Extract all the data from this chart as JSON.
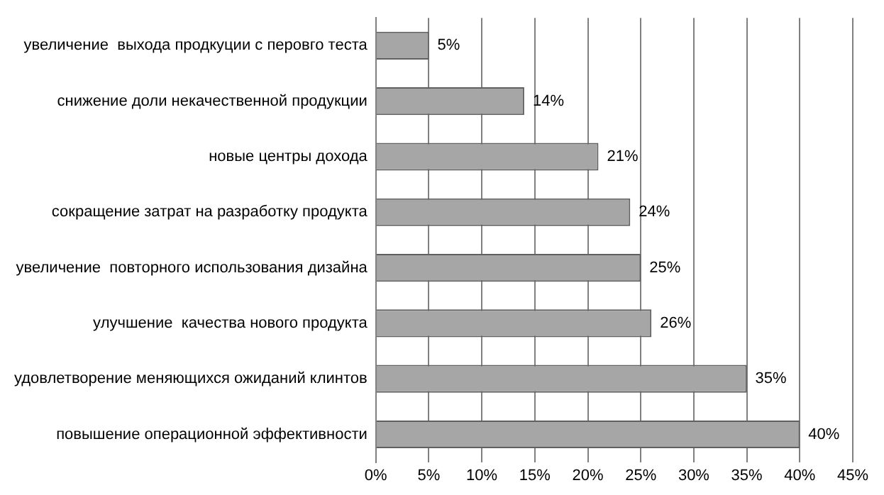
{
  "chart_data": {
    "type": "bar",
    "orientation": "horizontal",
    "categories": [
      "увеличение  выхода продкуции с перовго теста",
      "снижение доли некачественной продукции",
      "новые центры дохода",
      "сокращение затрат на разработку продукта",
      "увеличение  повторного использования дизайна",
      "улучшение  качества нового продукта",
      "удовлетворение меняющихся ожиданий клинтов",
      "повышение операционной эффективности"
    ],
    "values": [
      5,
      14,
      21,
      24,
      25,
      26,
      35,
      40
    ],
    "value_labels": [
      "5%",
      "14%",
      "21%",
      "24%",
      "25%",
      "26%",
      "35%",
      "40%"
    ],
    "color": "#a6a6a6",
    "xlim": [
      0,
      45
    ],
    "xticks": [
      {
        "value": 0,
        "label": "0%"
      },
      {
        "value": 5,
        "label": "5%"
      },
      {
        "value": 10,
        "label": "10%"
      },
      {
        "value": 15,
        "label": "15%"
      },
      {
        "value": 20,
        "label": "20%"
      },
      {
        "value": 25,
        "label": "25%"
      },
      {
        "value": 30,
        "label": "30%"
      },
      {
        "value": 35,
        "label": "35%"
      },
      {
        "value": 40,
        "label": "40%"
      },
      {
        "value": 45,
        "label": "45%"
      }
    ],
    "grid": "x",
    "legend": false
  }
}
